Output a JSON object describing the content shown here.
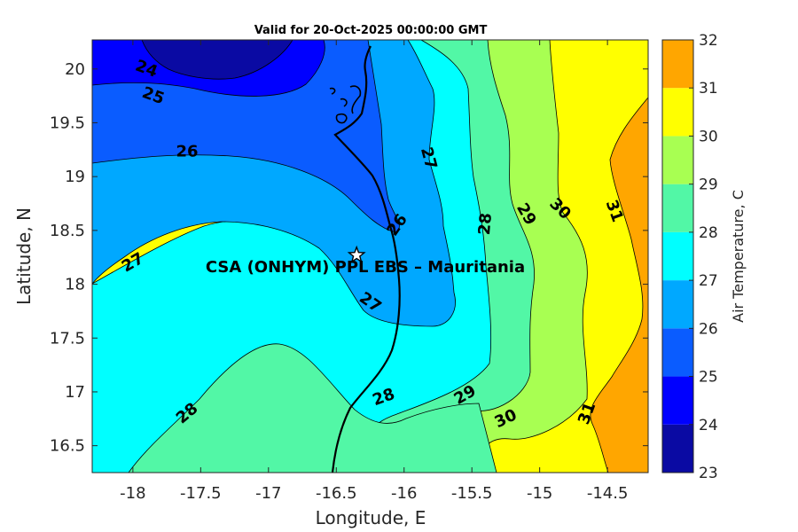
{
  "chart_data": {
    "type": "filled-contour",
    "title": "Valid for 20-Oct-2025 00:00:00 GMT",
    "xlabel": "Longitude, E",
    "ylabel": "Latitude, N",
    "xlim": [
      -18.3,
      -14.2
    ],
    "ylim": [
      16.25,
      20.27
    ],
    "xticks": [
      -18,
      -17.5,
      -17,
      -16.5,
      -16,
      -15.5,
      -15,
      -14.5
    ],
    "xtick_labels": [
      "-18",
      "-17.5",
      "-17",
      "-16.5",
      "-16",
      "-15.5",
      "-15",
      "-14.5"
    ],
    "yticks": [
      16.5,
      17,
      17.5,
      18,
      18.5,
      19,
      19.5,
      20
    ],
    "ytick_labels": [
      "16.5",
      "17",
      "17.5",
      "18",
      "18.5",
      "19",
      "19.5",
      "20"
    ],
    "colorbar": {
      "label": "Air Temperature, C",
      "levels": [
        23,
        24,
        25,
        26,
        27,
        28,
        29,
        30,
        31,
        32
      ],
      "tick_labels": [
        "23",
        "24",
        "25",
        "26",
        "27",
        "28",
        "29",
        "30",
        "31",
        "32"
      ],
      "colors": [
        "#0a0aa3",
        "#0000ff",
        "#0a5cff",
        "#00a8ff",
        "#00ffff",
        "#52f7a6",
        "#a8ff52",
        "#ffff00",
        "#ffa600",
        "#ff5500"
      ]
    },
    "contour_levels": [
      24,
      25,
      26,
      27,
      28,
      29,
      30,
      31
    ],
    "contour_labels": [
      {
        "text": "24",
        "lon": -17.9,
        "lat": 20.0,
        "rot": 20
      },
      {
        "text": "25",
        "lon": -17.85,
        "lat": 19.75,
        "rot": 20
      },
      {
        "text": "26",
        "lon": -17.6,
        "lat": 19.23,
        "rot": 0
      },
      {
        "text": "27",
        "lon": -15.82,
        "lat": 19.17,
        "rot": 75
      },
      {
        "text": "26",
        "lon": -16.05,
        "lat": 18.55,
        "rot": -55
      },
      {
        "text": "27",
        "lon": -18.0,
        "lat": 18.2,
        "rot": -30
      },
      {
        "text": "27",
        "lon": -16.25,
        "lat": 17.83,
        "rot": 35
      },
      {
        "text": "28",
        "lon": -15.4,
        "lat": 18.56,
        "rot": -85
      },
      {
        "text": "29",
        "lon": -15.1,
        "lat": 18.65,
        "rot": 60
      },
      {
        "text": "30",
        "lon": -14.85,
        "lat": 18.7,
        "rot": 45
      },
      {
        "text": "31",
        "lon": -14.45,
        "lat": 18.68,
        "rot": 70
      },
      {
        "text": "28",
        "lon": -17.6,
        "lat": 16.8,
        "rot": -40
      },
      {
        "text": "28",
        "lon": -16.15,
        "lat": 16.95,
        "rot": -20
      },
      {
        "text": "29",
        "lon": -15.55,
        "lat": 16.97,
        "rot": -30
      },
      {
        "text": "30",
        "lon": -15.25,
        "lat": 16.75,
        "rot": -25
      },
      {
        "text": "31",
        "lon": -14.65,
        "lat": 16.8,
        "rot": -70
      }
    ],
    "site": {
      "name": "CSA (ONHYM) PPL EBS  – Mauritania",
      "lon": -16.35,
      "lat": 18.27
    }
  }
}
